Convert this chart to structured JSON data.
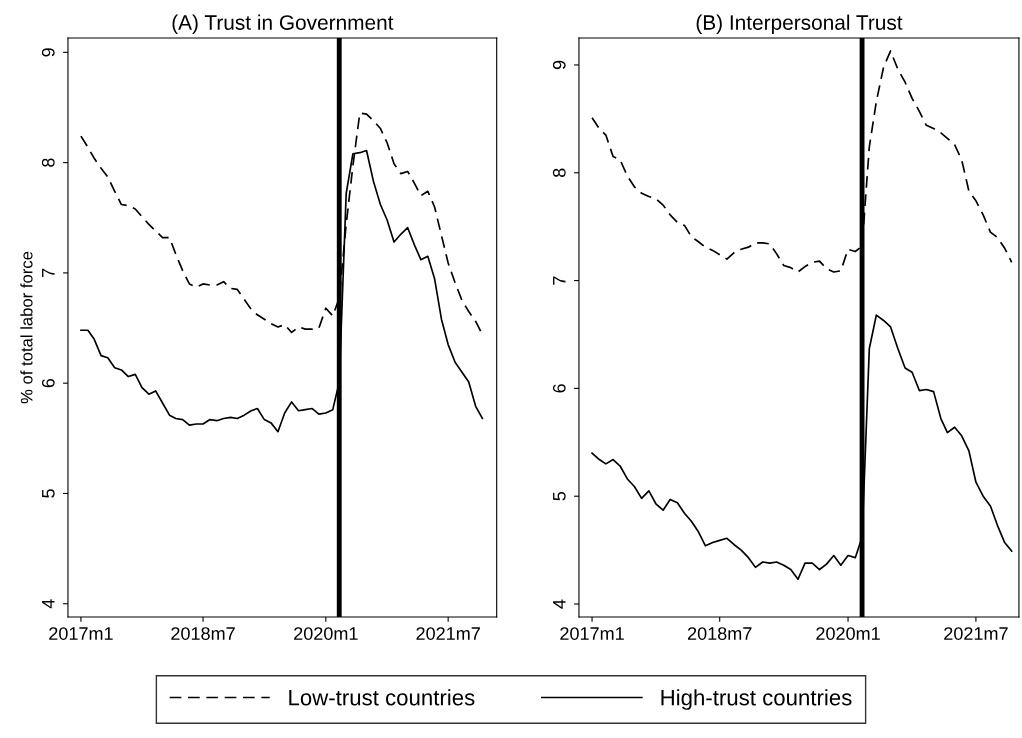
{
  "chart_data": [
    {
      "type": "line",
      "title": "(A) Trust in Government",
      "ylabel": "% of total labor force",
      "x": [
        "2017-01",
        "2017-02",
        "2017-03",
        "2017-04",
        "2017-05",
        "2017-06",
        "2017-07",
        "2017-08",
        "2017-09",
        "2017-10",
        "2017-11",
        "2017-12",
        "2018-01",
        "2018-02",
        "2018-03",
        "2018-04",
        "2018-05",
        "2018-06",
        "2018-07",
        "2018-08",
        "2018-09",
        "2018-10",
        "2018-11",
        "2018-12",
        "2019-01",
        "2019-02",
        "2019-03",
        "2019-04",
        "2019-05",
        "2019-06",
        "2019-07",
        "2019-08",
        "2019-09",
        "2019-10",
        "2019-11",
        "2019-12",
        "2020-01",
        "2020-02",
        "2020-03",
        "2020-04",
        "2020-05",
        "2020-06",
        "2020-07",
        "2020-08",
        "2020-09",
        "2020-10",
        "2020-11",
        "2020-12",
        "2021-01",
        "2021-02",
        "2021-03",
        "2021-04",
        "2021-05",
        "2021-06",
        "2021-07",
        "2021-08",
        "2021-09",
        "2021-10",
        "2021-11",
        "2021-12"
      ],
      "series": [
        {
          "name": "Low-trust countries",
          "color": "#000000",
          "line_style": "dashed",
          "values": [
            8.24,
            8.14,
            8.04,
            7.95,
            7.87,
            7.74,
            7.62,
            7.61,
            7.58,
            7.51,
            7.44,
            7.38,
            7.32,
            7.32,
            7.17,
            7.02,
            6.9,
            6.87,
            6.9,
            6.89,
            6.89,
            6.92,
            6.86,
            6.85,
            6.76,
            6.67,
            6.62,
            6.58,
            6.54,
            6.51,
            6.53,
            6.46,
            6.51,
            6.49,
            6.49,
            6.5,
            6.68,
            6.61,
            6.77,
            7.44,
            7.97,
            8.45,
            8.44,
            8.38,
            8.31,
            8.18,
            7.99,
            7.9,
            7.92,
            7.81,
            7.7,
            7.74,
            7.6,
            7.34,
            7.09,
            6.91,
            6.75,
            6.65,
            6.56,
            6.44
          ]
        },
        {
          "name": "High-trust countries",
          "color": "#000000",
          "line_style": "solid",
          "values": [
            6.48,
            6.48,
            6.4,
            6.25,
            6.23,
            6.14,
            6.12,
            6.06,
            6.08,
            5.96,
            5.9,
            5.93,
            5.82,
            5.71,
            5.68,
            5.67,
            5.62,
            5.63,
            5.63,
            5.67,
            5.66,
            5.68,
            5.69,
            5.68,
            5.71,
            5.75,
            5.77,
            5.67,
            5.64,
            5.56,
            5.73,
            5.83,
            5.75,
            5.76,
            5.77,
            5.72,
            5.73,
            5.76,
            6.01,
            7.72,
            8.08,
            8.09,
            8.11,
            7.83,
            7.62,
            7.48,
            7.28,
            7.35,
            7.41,
            7.25,
            7.12,
            7.15,
            6.95,
            6.58,
            6.35,
            6.19,
            6.1,
            6.01,
            5.79,
            5.68
          ]
        }
      ],
      "xlim": [
        "2016-11-04",
        "2022-02-03"
      ],
      "xticks": [
        {
          "value": "2017-01",
          "label": "2017m1"
        },
        {
          "value": "2018-07",
          "label": "2018m7"
        },
        {
          "value": "2020-01",
          "label": "2020m1"
        },
        {
          "value": "2021-07",
          "label": "2021m7"
        }
      ],
      "ylim": [
        3.88,
        9.13
      ],
      "yticks": [
        4,
        5,
        6,
        7,
        8,
        9
      ],
      "ref_lines": [
        {
          "axis": "x",
          "value": "2020-03",
          "color": "#000000"
        }
      ],
      "grid": false,
      "legend": "bottom"
    },
    {
      "type": "line",
      "title": "(B) Interpersonal Trust",
      "x": [
        "2017-01",
        "2017-02",
        "2017-03",
        "2017-04",
        "2017-05",
        "2017-06",
        "2017-07",
        "2017-08",
        "2017-09",
        "2017-10",
        "2017-11",
        "2017-12",
        "2018-01",
        "2018-02",
        "2018-03",
        "2018-04",
        "2018-05",
        "2018-06",
        "2018-07",
        "2018-08",
        "2018-09",
        "2018-10",
        "2018-11",
        "2018-12",
        "2019-01",
        "2019-02",
        "2019-03",
        "2019-04",
        "2019-05",
        "2019-06",
        "2019-07",
        "2019-08",
        "2019-09",
        "2019-10",
        "2019-11",
        "2019-12",
        "2020-01",
        "2020-02",
        "2020-03",
        "2020-04",
        "2020-05",
        "2020-06",
        "2020-07",
        "2020-08",
        "2020-09",
        "2020-10",
        "2020-11",
        "2020-12",
        "2021-01",
        "2021-02",
        "2021-03",
        "2021-04",
        "2021-05",
        "2021-06",
        "2021-07",
        "2021-08",
        "2021-09",
        "2021-10",
        "2021-11",
        "2021-12"
      ],
      "series": [
        {
          "color": "#000000",
          "line_style": "dashed",
          "values": [
            8.51,
            8.41,
            8.35,
            8.15,
            8.12,
            7.97,
            7.87,
            7.81,
            7.78,
            7.76,
            7.7,
            7.61,
            7.54,
            7.51,
            7.41,
            7.36,
            7.31,
            7.28,
            7.24,
            7.2,
            7.26,
            7.29,
            7.31,
            7.35,
            7.35,
            7.34,
            7.25,
            7.14,
            7.12,
            7.08,
            7.13,
            7.17,
            7.18,
            7.11,
            7.08,
            7.09,
            7.29,
            7.27,
            7.32,
            8.24,
            8.66,
            8.98,
            9.13,
            8.96,
            8.84,
            8.69,
            8.57,
            8.44,
            8.41,
            8.37,
            8.32,
            8.26,
            8.12,
            7.83,
            7.74,
            7.61,
            7.45,
            7.4,
            7.3,
            7.17
          ]
        },
        {
          "color": "#000000",
          "line_style": "solid",
          "values": [
            5.4,
            5.34,
            5.3,
            5.34,
            5.28,
            5.16,
            5.09,
            4.98,
            5.05,
            4.93,
            4.87,
            4.97,
            4.94,
            4.84,
            4.77,
            4.67,
            4.54,
            4.57,
            4.59,
            4.61,
            4.55,
            4.5,
            4.43,
            4.34,
            4.39,
            4.38,
            4.39,
            4.36,
            4.32,
            4.23,
            4.38,
            4.38,
            4.32,
            4.37,
            4.45,
            4.36,
            4.45,
            4.43,
            4.62,
            6.37,
            6.68,
            6.63,
            6.57,
            6.37,
            6.19,
            6.15,
            5.98,
            5.99,
            5.97,
            5.72,
            5.59,
            5.64,
            5.56,
            5.42,
            5.13,
            5.0,
            4.91,
            4.73,
            4.57,
            4.49
          ]
        }
      ],
      "xlim": [
        "2016-11-06",
        "2022-01-01"
      ],
      "xticks": [
        {
          "value": "2017-01",
          "label": "2017m1"
        },
        {
          "value": "2018-07",
          "label": "2018m7"
        },
        {
          "value": "2020-01",
          "label": "2020m1"
        },
        {
          "value": "2021-07",
          "label": "2021m7"
        }
      ],
      "ylim": [
        3.88,
        9.25
      ],
      "yticks": [
        4,
        5,
        6,
        7,
        8,
        9
      ],
      "ref_lines": [
        {
          "axis": "x",
          "value": "2020-03",
          "color": "#000000"
        }
      ],
      "grid": false
    }
  ]
}
